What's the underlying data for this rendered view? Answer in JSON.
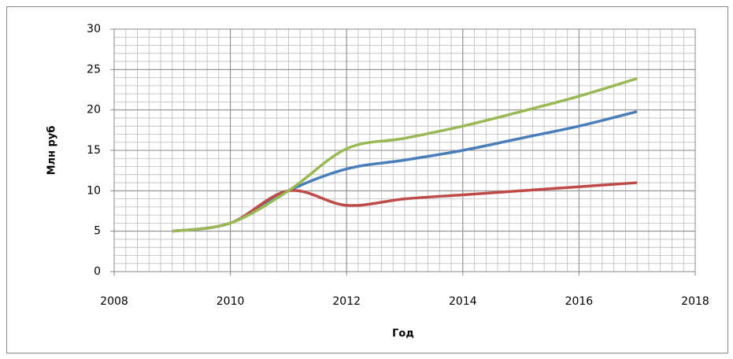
{
  "chart_data": {
    "type": "line",
    "smooth": true,
    "x_label": "Год",
    "y_label": "Млн руб",
    "x": [
      2009,
      2010,
      2011,
      2012,
      2013,
      2014,
      2015,
      2016,
      2017
    ],
    "series": [
      {
        "color": "#4a7ebb",
        "values": [
          5,
          6,
          10,
          12.7,
          13.8,
          15,
          16.5,
          18,
          19.8
        ]
      },
      {
        "color": "#be4b48",
        "values": [
          5,
          6,
          10,
          8.2,
          9,
          9.5,
          10,
          10.5,
          11
        ]
      },
      {
        "color": "#98b954",
        "values": [
          5,
          6,
          10,
          15.2,
          16.5,
          18,
          19.8,
          21.7,
          23.9
        ]
      }
    ],
    "xlim": [
      2008,
      2018
    ],
    "xticks": [
      2008,
      2010,
      2012,
      2014,
      2016,
      2018
    ],
    "ylim": [
      0,
      30
    ],
    "yticks": [
      0,
      5,
      10,
      15,
      20,
      25,
      30
    ],
    "grid": true,
    "minor_grid": true
  }
}
